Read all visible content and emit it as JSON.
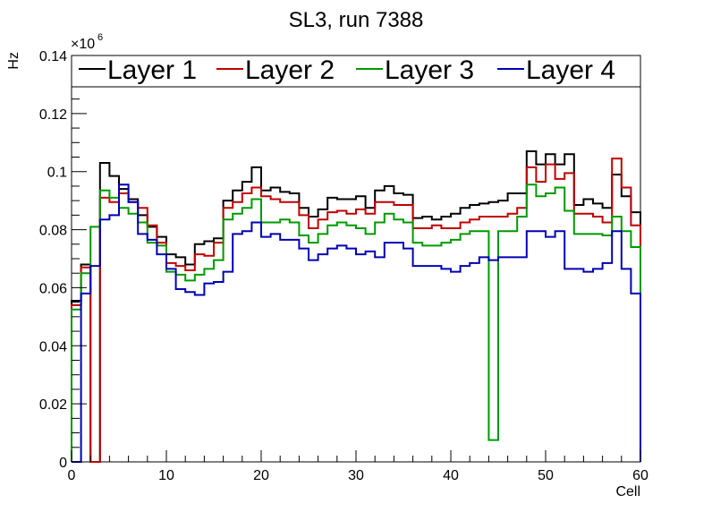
{
  "chart_data": {
    "type": "line",
    "step": true,
    "title": "SL3, run 7388",
    "xlabel": "Cell",
    "ylabel": "Hz",
    "y_multiplier": {
      "base": "×10",
      "exponent": "6"
    },
    "xlim": [
      0,
      60
    ],
    "ylim": [
      0,
      0.14
    ],
    "x_ticks": [
      0,
      10,
      20,
      30,
      40,
      50,
      60
    ],
    "x_tick_labels": [
      "0",
      "10",
      "20",
      "30",
      "40",
      "50",
      "60"
    ],
    "y_ticks": [
      0,
      0.02,
      0.04,
      0.06,
      0.08,
      0.1,
      0.12,
      0.14
    ],
    "y_tick_labels": [
      "0",
      "0.02",
      "0.04",
      "0.06",
      "0.08",
      "0.1",
      "0.12",
      "0.14"
    ],
    "legend_position": "top",
    "grid": false,
    "bin_edges": [
      0,
      1,
      2,
      3,
      4,
      5,
      6,
      7,
      8,
      9,
      10,
      11,
      12,
      13,
      14,
      15,
      16,
      17,
      18,
      19,
      20,
      21,
      22,
      23,
      24,
      25,
      26,
      27,
      28,
      29,
      30,
      31,
      32,
      33,
      34,
      35,
      36,
      37,
      38,
      39,
      40,
      41,
      42,
      43,
      44,
      45,
      46,
      47,
      48,
      49,
      50,
      51,
      52,
      53,
      54,
      55,
      56,
      57,
      58,
      59,
      60
    ],
    "series": [
      {
        "name": "Layer 1",
        "color": "#000000",
        "values": [
          0.0555,
          0.068,
          0,
          0.103,
          0.0985,
          0.094,
          0.0905,
          0.085,
          0.081,
          0.0775,
          0.0715,
          0.0705,
          0.068,
          0.075,
          0.076,
          0.077,
          0.09,
          0.0935,
          0.0965,
          0.1015,
          0.0935,
          0.0945,
          0.093,
          0.0925,
          0.0875,
          0.0845,
          0.087,
          0.091,
          0.0905,
          0.0905,
          0.0915,
          0.0875,
          0.0935,
          0.095,
          0.0925,
          0.092,
          0.084,
          0.0845,
          0.0835,
          0.0845,
          0.0855,
          0.0875,
          0.0885,
          0.089,
          0.0895,
          0.09,
          0.0925,
          0.0925,
          0.107,
          0.1025,
          0.106,
          0.1025,
          0.106,
          0.0885,
          0.0905,
          0.089,
          0.0875,
          0.099,
          0.0915,
          0.086
        ]
      },
      {
        "name": "Layer 2",
        "color": "#c00000",
        "values": [
          0.054,
          0.067,
          0,
          0.091,
          0.0895,
          0.0925,
          0.0895,
          0.0875,
          0.0815,
          0.0755,
          0.0685,
          0.0675,
          0.066,
          0.0715,
          0.071,
          0.0755,
          0.0875,
          0.0895,
          0.0925,
          0.0945,
          0.0915,
          0.0905,
          0.0895,
          0.0895,
          0.085,
          0.0805,
          0.0835,
          0.086,
          0.0865,
          0.0855,
          0.087,
          0.0855,
          0.0895,
          0.0895,
          0.0885,
          0.0885,
          0.0805,
          0.0805,
          0.0815,
          0.0805,
          0.0805,
          0.0825,
          0.0835,
          0.0845,
          0.0845,
          0.0845,
          0.0855,
          0.0875,
          0.1015,
          0.0965,
          0.1025,
          0.0975,
          0.0995,
          0.0855,
          0.0855,
          0.0845,
          0.0825,
          0.1045,
          0.0945,
          0.0815
        ]
      },
      {
        "name": "Layer 3",
        "color": "#009a00",
        "values": [
          0.0525,
          0.065,
          0.081,
          0.0935,
          0.091,
          0.0875,
          0.0855,
          0.0825,
          0.0755,
          0.0745,
          0.0655,
          0.0645,
          0.0625,
          0.0645,
          0.0665,
          0.0695,
          0.0835,
          0.0855,
          0.0875,
          0.0905,
          0.0825,
          0.0825,
          0.0835,
          0.0825,
          0.078,
          0.0755,
          0.0785,
          0.0815,
          0.0825,
          0.0815,
          0.0805,
          0.0785,
          0.0825,
          0.0855,
          0.0835,
          0.0825,
          0.0755,
          0.0745,
          0.0745,
          0.0755,
          0.0765,
          0.0785,
          0.0795,
          0.0795,
          0.0075,
          0.0795,
          0.0795,
          0.0845,
          0.0955,
          0.0915,
          0.0925,
          0.0945,
          0.0865,
          0.0785,
          0.0785,
          0.0785,
          0.078,
          0.0845,
          0.0795,
          0.074
        ]
      },
      {
        "name": "Layer 4",
        "color": "#0000b4",
        "values": [
          0,
          0.058,
          0.0675,
          0.0835,
          0.085,
          0.0955,
          0.0895,
          0.0785,
          0.0765,
          0.0715,
          0.0665,
          0.0595,
          0.0585,
          0.0575,
          0.0615,
          0.062,
          0.0655,
          0.0785,
          0.0795,
          0.0825,
          0.0775,
          0.0785,
          0.0765,
          0.0765,
          0.0735,
          0.0695,
          0.0715,
          0.0735,
          0.0745,
          0.0735,
          0.0715,
          0.0725,
          0.0705,
          0.0755,
          0.0755,
          0.0735,
          0.0675,
          0.0675,
          0.0675,
          0.0665,
          0.0655,
          0.0675,
          0.0685,
          0.0705,
          0.0695,
          0.0705,
          0.0705,
          0.0705,
          0.0795,
          0.0795,
          0.0775,
          0.0795,
          0.0665,
          0.0665,
          0.0655,
          0.0665,
          0.0685,
          0.0795,
          0.0665,
          0.058
        ]
      }
    ]
  }
}
